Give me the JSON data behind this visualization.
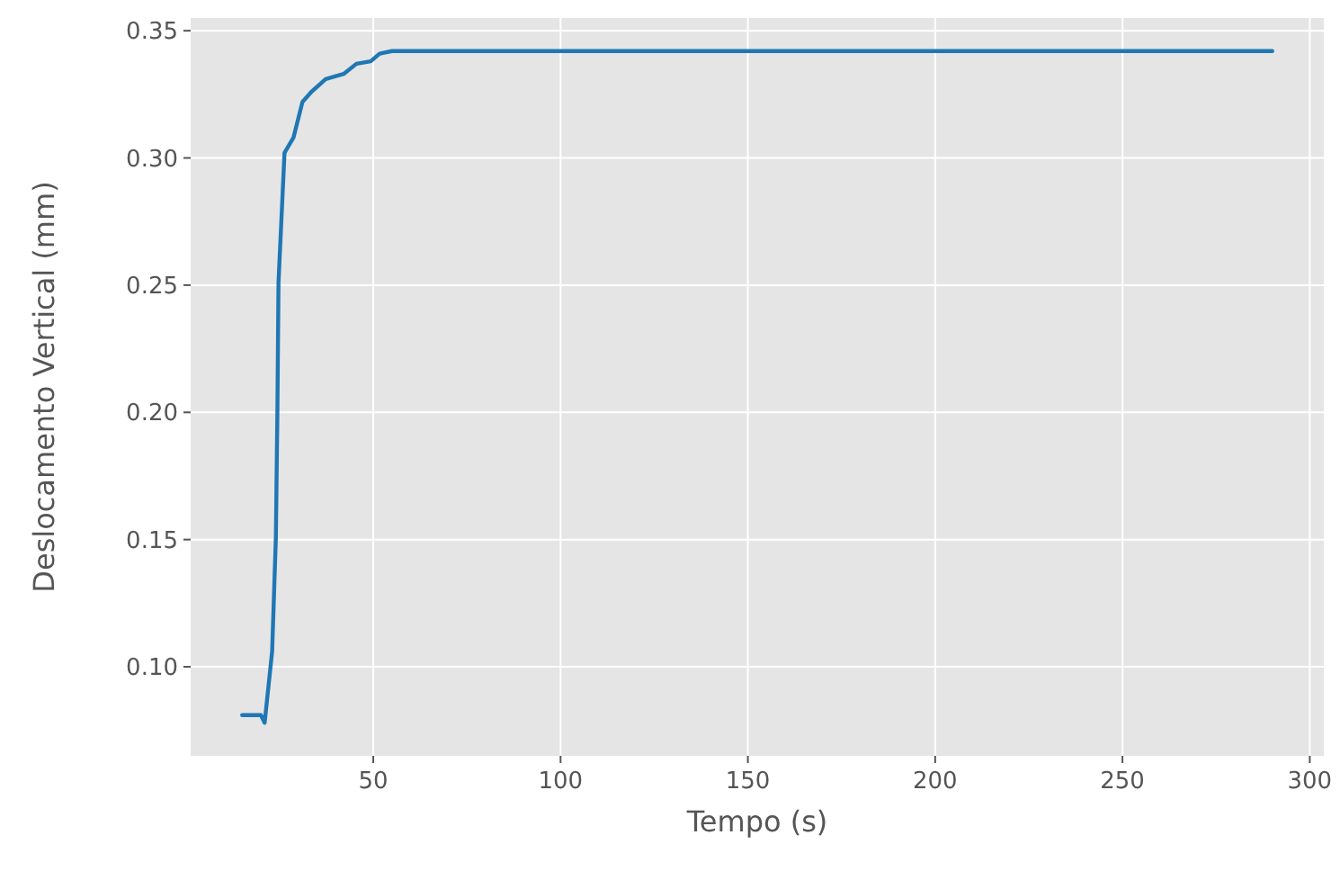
{
  "chart_data": {
    "type": "line",
    "xlabel": "Tempo (s)",
    "ylabel": "Deslocamento Vertical (mm)",
    "x": [
      15,
      20,
      21,
      23,
      24,
      24.4,
      24.7,
      26.3,
      28.7,
      31.1,
      33.5,
      37.3,
      42.1,
      45.5,
      49.3,
      51.7,
      55,
      290
    ],
    "series": [
      {
        "color": "#1f77b4",
        "values": [
          0.081,
          0.081,
          0.078,
          0.106,
          0.151,
          0.2,
          0.251,
          0.302,
          0.308,
          0.322,
          0.326,
          0.331,
          0.333,
          0.337,
          0.338,
          0.341,
          0.342,
          0.342
        ]
      }
    ],
    "xlim": [
      1.25,
      303.75
    ],
    "ylim": [
      0.065,
      0.355
    ],
    "xticks": [
      50,
      100,
      150,
      200,
      250,
      300
    ],
    "yticks": [
      {
        "value": 0.1,
        "label": "0.10"
      },
      {
        "value": 0.15,
        "label": "0.15"
      },
      {
        "value": 0.2,
        "label": "0.20"
      },
      {
        "value": 0.25,
        "label": "0.25"
      },
      {
        "value": 0.3,
        "label": "0.30"
      },
      {
        "value": 0.35,
        "label": "0.35"
      }
    ],
    "grid": true,
    "marker": "none",
    "line_style": "solid"
  }
}
